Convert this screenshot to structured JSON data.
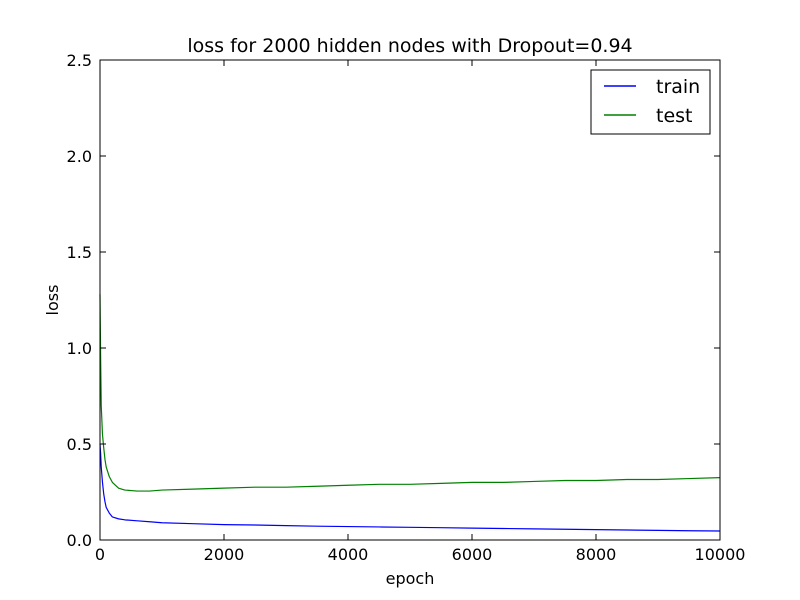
{
  "chart_data": {
    "type": "line",
    "title": "loss for 2000 hidden nodes with Dropout=0.94",
    "xlabel": "epoch",
    "ylabel": "loss",
    "xlim": [
      0,
      10000
    ],
    "ylim": [
      0,
      2.5
    ],
    "xticks": [
      0,
      2000,
      4000,
      6000,
      8000,
      10000
    ],
    "yticks": [
      0.0,
      0.5,
      1.0,
      1.5,
      2.0,
      2.5
    ],
    "xtick_labels": [
      "0",
      "2000",
      "4000",
      "6000",
      "8000",
      "10000"
    ],
    "ytick_labels": [
      "0.0",
      "0.5",
      "1.0",
      "1.5",
      "2.0",
      "2.5"
    ],
    "grid": false,
    "legend_position": "top-right",
    "series": [
      {
        "name": "train",
        "color": "#0000ff",
        "x": [
          0,
          10,
          20,
          40,
          60,
          80,
          100,
          150,
          200,
          300,
          400,
          600,
          800,
          1000,
          1500,
          2000,
          2500,
          3000,
          3500,
          4000,
          4500,
          5000,
          5500,
          6000,
          6500,
          7000,
          7500,
          8000,
          8500,
          9000,
          9500,
          10000
        ],
        "y": [
          0.5,
          0.45,
          0.38,
          0.3,
          0.24,
          0.2,
          0.17,
          0.14,
          0.12,
          0.11,
          0.105,
          0.1,
          0.095,
          0.09,
          0.085,
          0.08,
          0.078,
          0.075,
          0.072,
          0.07,
          0.068,
          0.066,
          0.064,
          0.062,
          0.06,
          0.058,
          0.056,
          0.054,
          0.052,
          0.05,
          0.048,
          0.047
        ]
      },
      {
        "name": "test",
        "color": "#008000",
        "x": [
          0,
          10,
          20,
          40,
          60,
          80,
          100,
          150,
          200,
          300,
          400,
          600,
          800,
          1000,
          1500,
          2000,
          2500,
          3000,
          3500,
          4000,
          4500,
          5000,
          5500,
          6000,
          6500,
          7000,
          7500,
          8000,
          8500,
          9000,
          9500,
          10000
        ],
        "y": [
          1.28,
          0.95,
          0.7,
          0.55,
          0.48,
          0.42,
          0.38,
          0.33,
          0.3,
          0.27,
          0.26,
          0.255,
          0.255,
          0.26,
          0.265,
          0.27,
          0.275,
          0.275,
          0.28,
          0.285,
          0.29,
          0.29,
          0.295,
          0.3,
          0.3,
          0.305,
          0.31,
          0.31,
          0.315,
          0.315,
          0.32,
          0.325
        ]
      }
    ]
  }
}
